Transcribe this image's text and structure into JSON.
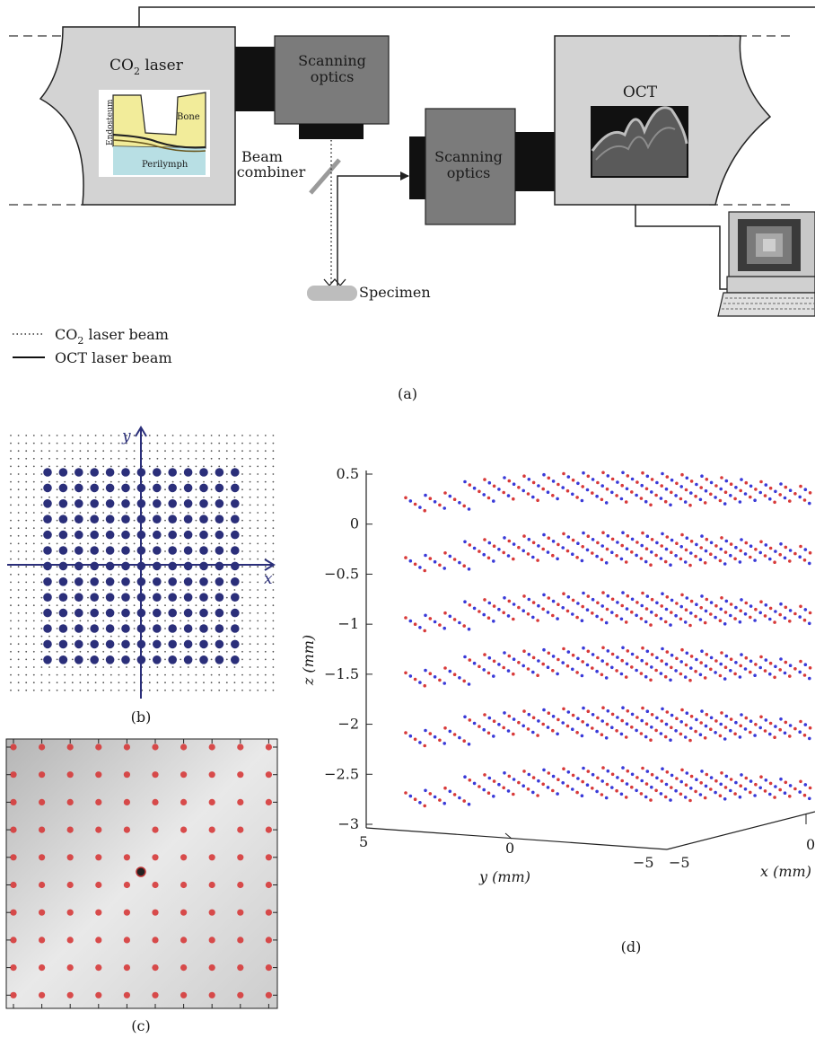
{
  "panel_a": {
    "co2_box_label": "CO",
    "co2_sub": "2",
    "co2_box_suffix": " laser",
    "inset_labels": {
      "bone": "Bone",
      "endosteum": "Endosteum",
      "perilymph": "Perilymph"
    },
    "scan_optics_1": [
      "Scanning",
      "optics"
    ],
    "scan_optics_2": [
      "Scanning",
      "optics"
    ],
    "beam_combiner": [
      "Beam",
      "combiner"
    ],
    "oct_label": "OCT",
    "specimen_label": "Specimen",
    "legend": [
      {
        "prefix": "CO",
        "sub": "2",
        "suffix": " laser beam",
        "style": "dotted"
      },
      {
        "prefix": "OCT laser beam",
        "sub": "",
        "suffix": "",
        "style": "solid"
      }
    ],
    "caption": "(a)"
  },
  "panel_b": {
    "x_axis_label": "x",
    "y_axis_label": "y",
    "grid_pattern": "square array of large dots",
    "caption": "(b)"
  },
  "panel_c": {
    "caption": "(c)"
  },
  "panel_d": {
    "caption": "(d)"
  },
  "chart_data": {
    "type": "scatter",
    "xlabel": "x (mm)",
    "ylabel": "y (mm)",
    "zlabel": "z (mm)",
    "z_ticks": [
      "0.5",
      "0",
      "−0.5",
      "−1",
      "−1.5",
      "−2",
      "−2.5",
      "−3"
    ],
    "y_ticks": [
      "5",
      "0",
      "−5"
    ],
    "x_ticks": [
      "−5",
      "0"
    ],
    "zlim": [
      -3,
      0.5
    ],
    "layers_z": [
      0.3,
      -0.3,
      -0.9,
      -1.45,
      -2.05,
      -2.65
    ],
    "series_colors": [
      "#d83a3a",
      "#3a3ad8"
    ]
  }
}
